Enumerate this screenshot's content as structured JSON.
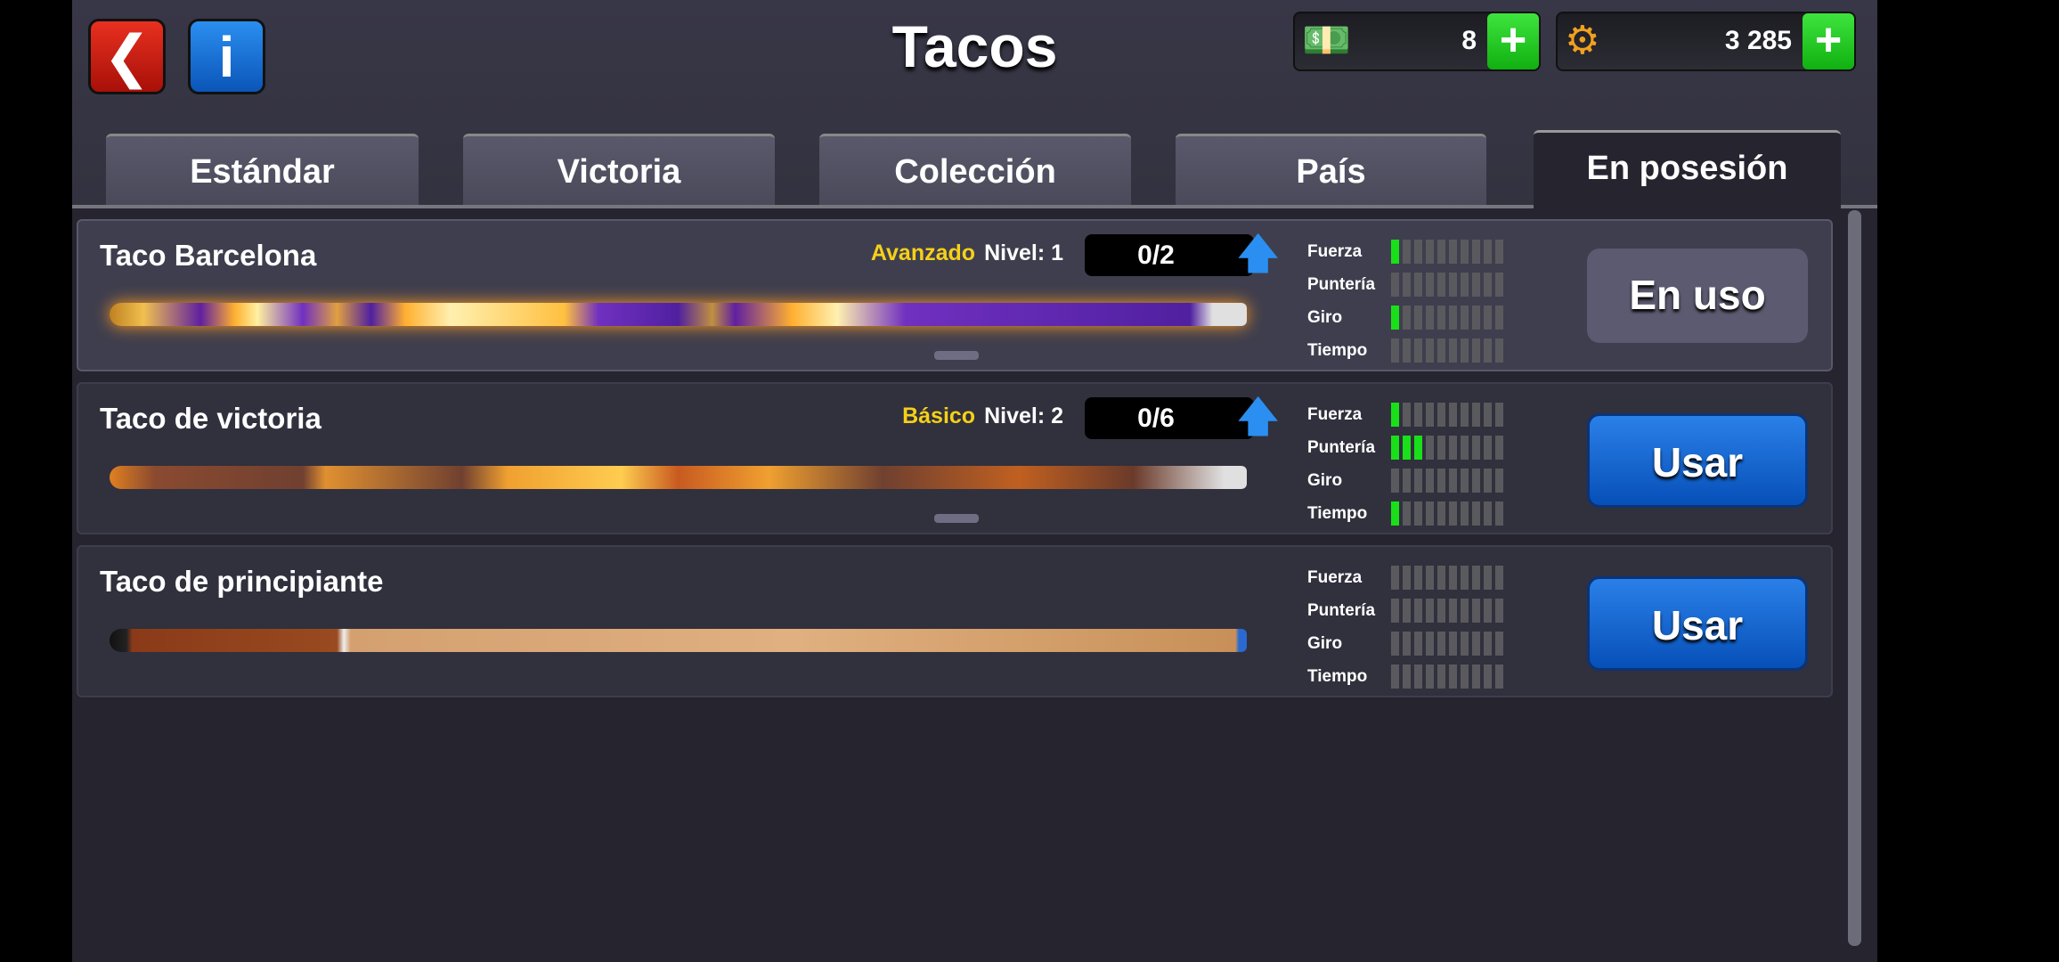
{
  "header": {
    "title": "Tacos",
    "back_icon": "chevron-left-icon",
    "info_icon": "info-icon",
    "cash": {
      "icon": "cash-icon",
      "value": "8",
      "plus": "+"
    },
    "coins": {
      "icon": "gear-coin-icon",
      "value": "3 285",
      "plus": "+"
    }
  },
  "tabs": [
    {
      "label": "Estándar"
    },
    {
      "label": "Victoria"
    },
    {
      "label": "Colección"
    },
    {
      "label": "País"
    },
    {
      "label": "En posesión",
      "active": true
    }
  ],
  "stat_labels": [
    "Fuerza",
    "Puntería",
    "Giro",
    "Tiempo"
  ],
  "stat_max": 10,
  "cues": [
    {
      "name": "Taco Barcelona",
      "tier": "Avanzado",
      "level": "Nivel: 1",
      "progress": "0/2",
      "stats": [
        1,
        0,
        1,
        0
      ],
      "button": "En uso",
      "in_use": true
    },
    {
      "name": "Taco de victoria",
      "tier": "Básico",
      "level": "Nivel: 2",
      "progress": "0/6",
      "stats": [
        1,
        3,
        0,
        1
      ],
      "button": "Usar",
      "in_use": false
    },
    {
      "name": "Taco de principiante",
      "stats": [
        0,
        0,
        0,
        0
      ],
      "button": "Usar",
      "in_use": false
    }
  ],
  "colors": {
    "tier": "#f5d019",
    "stat_on": "#19e019",
    "use_button": "#0a5fcf",
    "bg": "#25242f"
  }
}
